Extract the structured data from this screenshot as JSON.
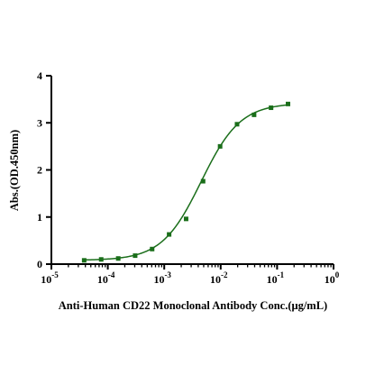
{
  "chart_data": {
    "type": "scatter",
    "xlabel": "Anti-Human CD22 Monoclonal Antibody Conc.(μg/mL)",
    "ylabel": "Abs.(OD.450nm)",
    "x_scale": "log",
    "xlim": [
      1e-05,
      1
    ],
    "ylim": [
      0,
      4
    ],
    "x_ticks": [
      {
        "base": "10",
        "exp": "-5"
      },
      {
        "base": "10",
        "exp": "-4"
      },
      {
        "base": "10",
        "exp": "-3"
      },
      {
        "base": "10",
        "exp": "-2"
      },
      {
        "base": "10",
        "exp": "-1"
      },
      {
        "base": "10",
        "exp": "0"
      }
    ],
    "y_ticks": [
      "0",
      "1",
      "2",
      "3",
      "4"
    ],
    "grid": false,
    "colors": {
      "series": "#1a6e1a",
      "axis": "#000000"
    },
    "series": [
      {
        "marker": "square",
        "x": [
          3.81e-05,
          7.63e-05,
          0.000153,
          0.000305,
          0.00061,
          0.00122,
          0.00244,
          0.00488,
          0.00977,
          0.0195,
          0.0391,
          0.0781,
          0.156
        ],
        "y": [
          0.08,
          0.1,
          0.12,
          0.18,
          0.32,
          0.63,
          0.96,
          1.76,
          2.5,
          2.97,
          3.17,
          3.32,
          3.4
        ]
      }
    ],
    "fit": {
      "bottom": 0.08,
      "top": 3.42,
      "ec50": 0.0045,
      "hill": 1.25
    }
  }
}
